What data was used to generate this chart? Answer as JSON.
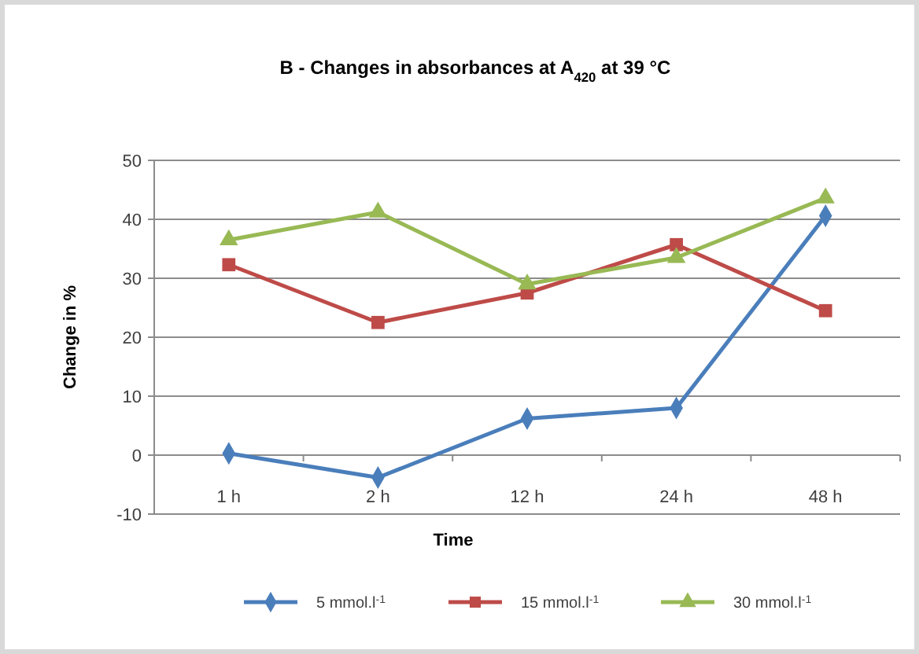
{
  "chart_data": {
    "type": "line",
    "title": "B - Changes in absorbances at A$_{420}$ at 39 °C",
    "xlabel": "Time",
    "ylabel": "Change in %",
    "categories": [
      "1 h",
      "2 h",
      "12 h",
      "24 h",
      "48 h"
    ],
    "series": [
      {
        "name": "5 mmol.l$^{-1}$",
        "color": "#4a7ebb",
        "marker": "diamond",
        "values": [
          0.3,
          -3.8,
          6.2,
          8,
          40.6
        ]
      },
      {
        "name": "15 mmol.l$^{-1}$",
        "color": "#be4b48",
        "marker": "square",
        "values": [
          32.3,
          22.5,
          27.5,
          35.7,
          24.5
        ]
      },
      {
        "name": "30 mmol.l$^{-1}$",
        "color": "#98b954",
        "marker": "triangle",
        "values": [
          36.5,
          41.2,
          29,
          33.5,
          43.6
        ]
      }
    ],
    "ylim": [
      -10,
      50
    ],
    "yticks": [
      -10,
      0,
      10,
      20,
      30,
      40,
      50
    ],
    "grid": "y",
    "legend": "bottom"
  }
}
